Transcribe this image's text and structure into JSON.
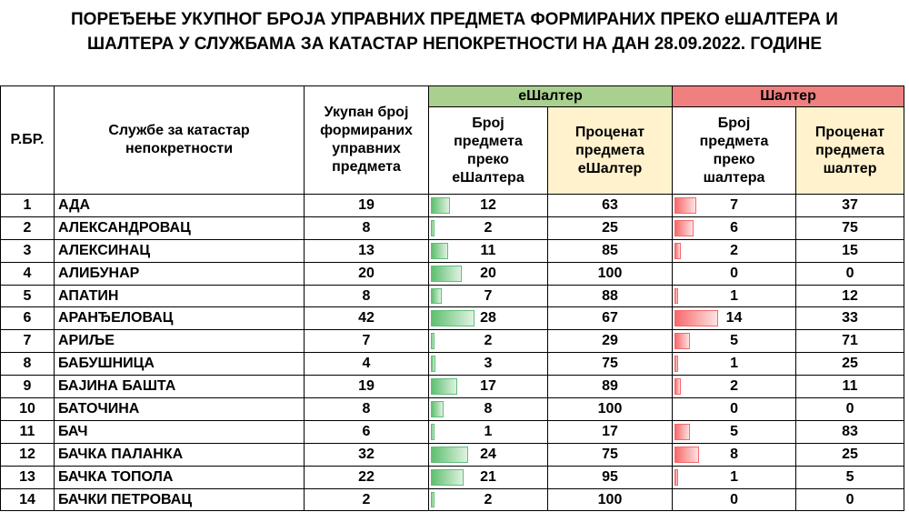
{
  "title": {
    "line1": "ПОРЕЂЕЊЕ УКУПНОГ БРОЈА УПРАВНИХ ПРЕДМЕТА ФОРМИРАНИХ ПРЕКО еШАЛТЕРА И",
    "line2": "ШАЛТЕРА У СЛУЖБАМА ЗА КАТАСТАР НЕПОКРЕТНОСТИ НА ДАН 28.09.2022. ГОДИНЕ"
  },
  "colors": {
    "eshalter_header": "#a9d08e",
    "shalter_header": "#f08080",
    "percent_header": "#fff2cc",
    "green_bar": "#63be7b",
    "red_bar": "#f8696b"
  },
  "headers": {
    "rbr": "Р.БР.",
    "office": "Службе за катастар непокретности",
    "total": "Укупан број формираних управних предмета",
    "eshalter_group": "еШалтер",
    "shalter_group": "Шалтер",
    "es_count": "Број предмета преко еШалтера",
    "es_percent": "Проценат предмета еШалтер",
    "sh_count": "Број предмета преко шалтера",
    "sh_percent": "Проценат предмета шалтер"
  },
  "rows": [
    {
      "rbr": "1",
      "name": "АДА",
      "total": "19",
      "es": "12",
      "es_pct": "63",
      "sh": "7",
      "sh_pct": "37"
    },
    {
      "rbr": "2",
      "name": "АЛЕКСАНДРОВАЦ",
      "total": "8",
      "es": "2",
      "es_pct": "25",
      "sh": "6",
      "sh_pct": "75"
    },
    {
      "rbr": "3",
      "name": "АЛЕКСИНАЦ",
      "total": "13",
      "es": "11",
      "es_pct": "85",
      "sh": "2",
      "sh_pct": "15"
    },
    {
      "rbr": "4",
      "name": "АЛИБУНАР",
      "total": "20",
      "es": "20",
      "es_pct": "100",
      "sh": "0",
      "sh_pct": "0"
    },
    {
      "rbr": "5",
      "name": "АПАТИН",
      "total": "8",
      "es": "7",
      "es_pct": "88",
      "sh": "1",
      "sh_pct": "12"
    },
    {
      "rbr": "6",
      "name": "АРАНЂЕЛОВАЦ",
      "total": "42",
      "es": "28",
      "es_pct": "67",
      "sh": "14",
      "sh_pct": "33"
    },
    {
      "rbr": "7",
      "name": "АРИЉЕ",
      "total": "7",
      "es": "2",
      "es_pct": "29",
      "sh": "5",
      "sh_pct": "71"
    },
    {
      "rbr": "8",
      "name": "БАБУШНИЦА",
      "total": "4",
      "es": "3",
      "es_pct": "75",
      "sh": "1",
      "sh_pct": "25"
    },
    {
      "rbr": "9",
      "name": "БАЈИНА БАШТА",
      "total": "19",
      "es": "17",
      "es_pct": "89",
      "sh": "2",
      "sh_pct": "11"
    },
    {
      "rbr": "10",
      "name": "БАТОЧИНА",
      "total": "8",
      "es": "8",
      "es_pct": "100",
      "sh": "0",
      "sh_pct": "0"
    },
    {
      "rbr": "11",
      "name": "БАЧ",
      "total": "6",
      "es": "1",
      "es_pct": "17",
      "sh": "5",
      "sh_pct": "83"
    },
    {
      "rbr": "12",
      "name": "БАЧКА ПАЛАНКА",
      "total": "32",
      "es": "24",
      "es_pct": "75",
      "sh": "8",
      "sh_pct": "25"
    },
    {
      "rbr": "13",
      "name": "БАЧКА ТОПОЛА",
      "total": "22",
      "es": "21",
      "es_pct": "95",
      "sh": "1",
      "sh_pct": "5"
    },
    {
      "rbr": "14",
      "name": "БАЧКИ ПЕТРОВАЦ",
      "total": "2",
      "es": "2",
      "es_pct": "100",
      "sh": "0",
      "sh_pct": "0"
    }
  ]
}
